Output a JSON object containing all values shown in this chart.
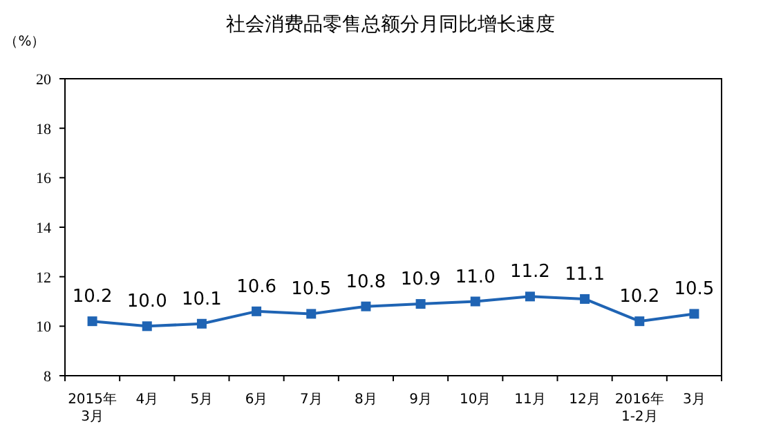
{
  "chart_data": {
    "type": "line",
    "title": "社会消费品零售总额分月同比增长速度",
    "ylabel": "（%）",
    "categories": [
      "2015年\n3月",
      "4月",
      "5月",
      "6月",
      "7月",
      "8月",
      "9月",
      "10月",
      "11月",
      "12月",
      "2016年\n1-2月",
      "3月"
    ],
    "series": [
      {
        "color": "#1f64b4",
        "values": [
          10.2,
          10.0,
          10.1,
          10.6,
          10.5,
          10.8,
          10.9,
          11.0,
          11.2,
          11.1,
          10.2,
          10.5
        ],
        "value_labels": [
          "10.2",
          "10.0",
          "10.1",
          "10.6",
          "10.5",
          "10.8",
          "10.9",
          "11.0",
          "11.2",
          "11.1",
          "10.2",
          "10.5"
        ]
      }
    ],
    "ylim": [
      8,
      20
    ],
    "yticks": [
      8,
      10,
      12,
      14,
      16,
      18,
      20
    ],
    "marker": "square",
    "line_style": "solid",
    "grid": false
  }
}
